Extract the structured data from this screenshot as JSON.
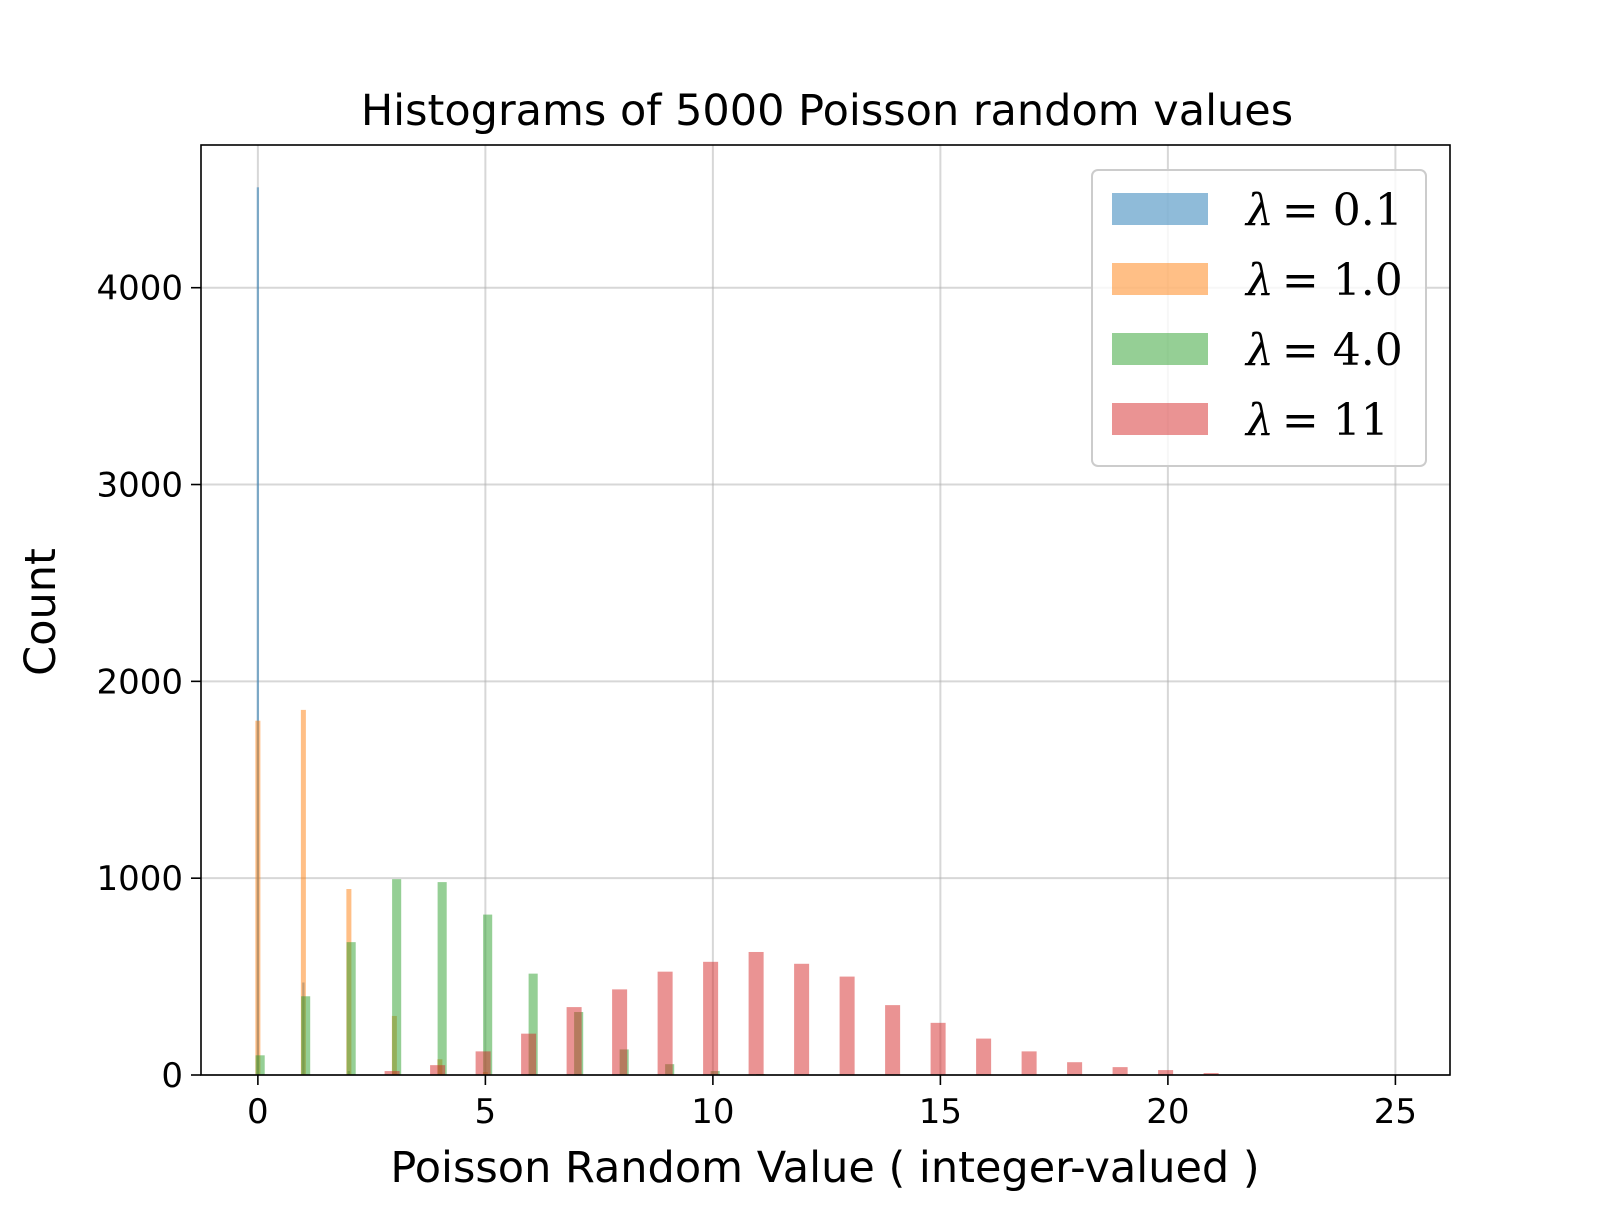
{
  "chart_data": {
    "type": "bar",
    "title": "Histograms of 5000 Poisson random values",
    "xlabel": "Poisson Random Value ( integer-valued )",
    "ylabel": "Count",
    "xlim": [
      -1.25,
      26.2
    ],
    "ylim": [
      0,
      4725
    ],
    "xticks": [
      0,
      5,
      10,
      15,
      20,
      25
    ],
    "yticks": [
      0,
      1000,
      2000,
      3000,
      4000
    ],
    "grid": true,
    "legend_position": "top-right",
    "series": [
      {
        "name": "λ = 0.1",
        "legend_symbol": "λ",
        "legend_value": "= 0.1",
        "color": "#1f77b4",
        "opacity": 0.5,
        "x": [
          0.0,
          1.0,
          2.0
        ],
        "values": [
          4510,
          470,
          20
        ],
        "bar_width": 0.05
      },
      {
        "name": "λ = 1.0",
        "legend_symbol": "λ",
        "legend_value": "= 1.0",
        "color": "#ff7f0e",
        "opacity": 0.5,
        "x": [
          0.0,
          1.0,
          2.0,
          3.0,
          4.0,
          5.0,
          6.0
        ],
        "values": [
          1800,
          1855,
          945,
          300,
          80,
          15,
          5
        ],
        "bar_width": 0.11
      },
      {
        "name": "λ = 4.0",
        "legend_symbol": "λ",
        "legend_value": "= 4.0",
        "color": "#2ca02c",
        "opacity": 0.5,
        "x": [
          0.05,
          1.05,
          2.05,
          3.05,
          4.05,
          5.05,
          6.05,
          7.05,
          8.05,
          9.05,
          10.05,
          11.05
        ],
        "values": [
          100,
          400,
          675,
          995,
          980,
          815,
          515,
          320,
          130,
          55,
          20,
          5
        ],
        "bar_width": 0.2
      },
      {
        "name": "λ = 11",
        "legend_symbol": "λ",
        "legend_value": "= 11",
        "color": "#d62728",
        "opacity": 0.5,
        "x": [
          2.95,
          3.95,
          4.95,
          5.95,
          6.95,
          7.95,
          8.95,
          9.95,
          10.95,
          11.95,
          12.95,
          13.95,
          14.95,
          15.95,
          16.95,
          17.95,
          18.95,
          19.95,
          20.95
        ],
        "values": [
          20,
          50,
          120,
          210,
          345,
          435,
          525,
          575,
          625,
          565,
          500,
          355,
          265,
          185,
          120,
          65,
          40,
          25,
          10
        ],
        "bar_width": 0.33
      }
    ]
  }
}
